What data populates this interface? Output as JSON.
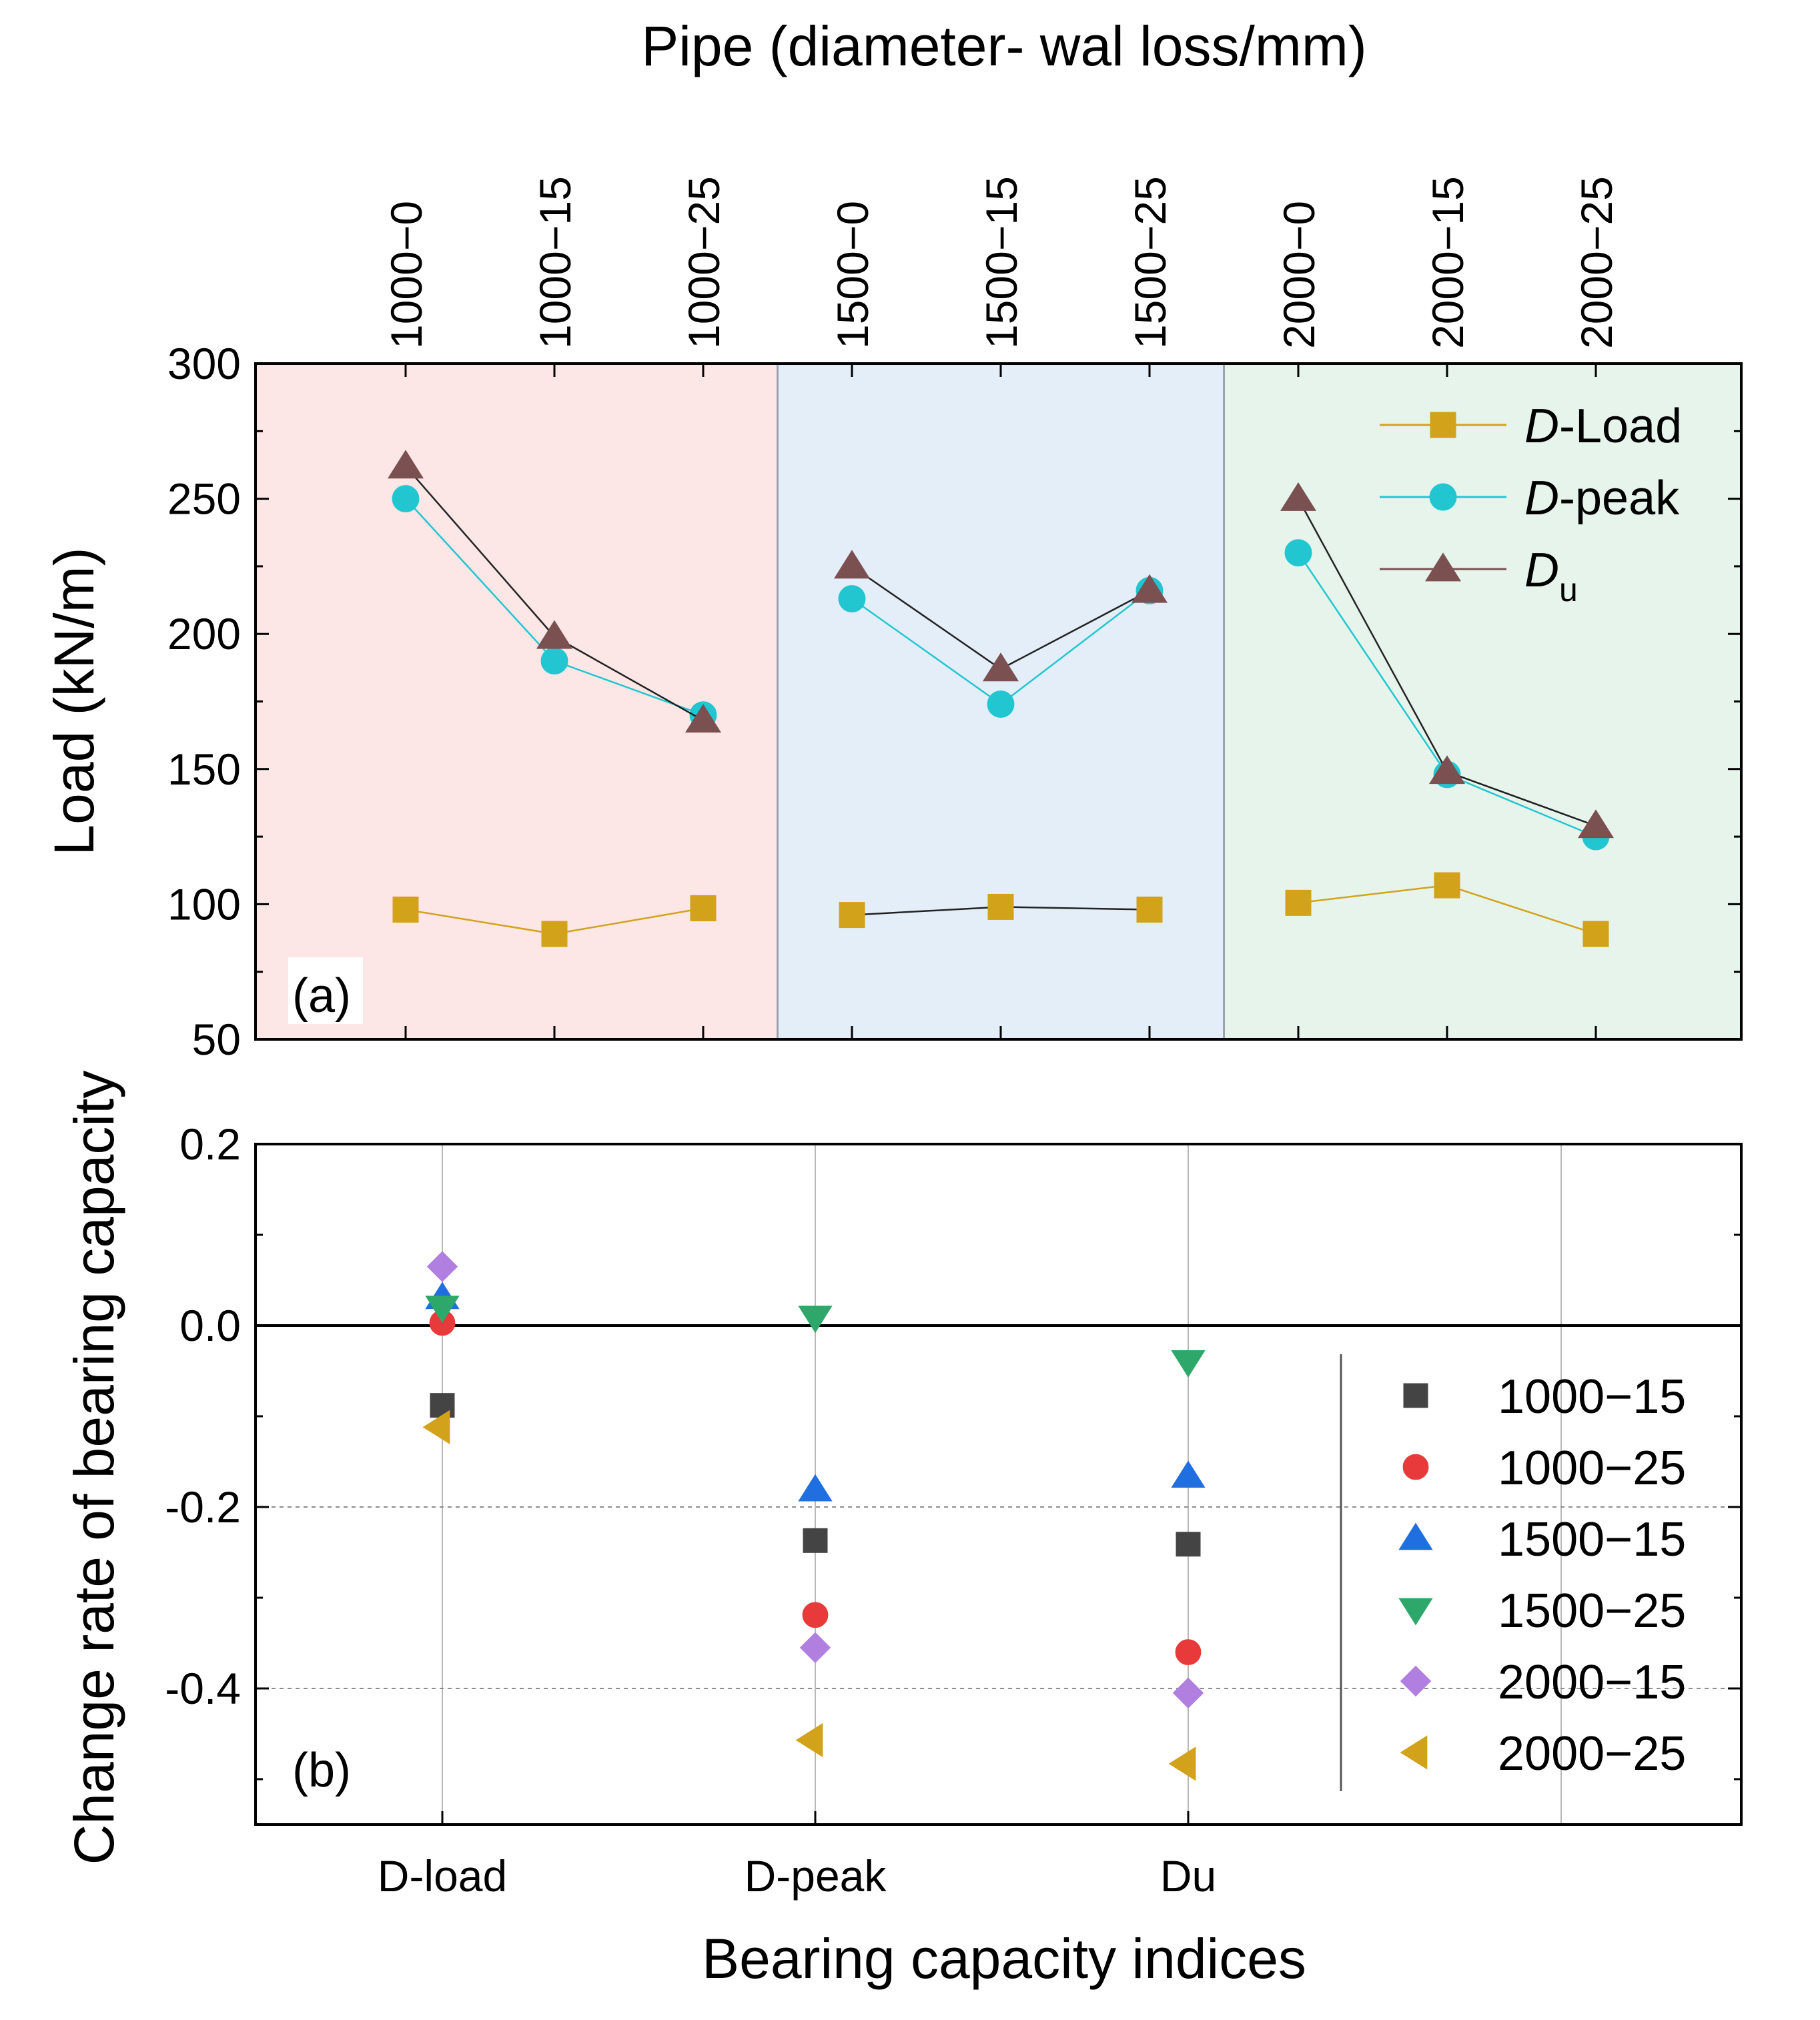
{
  "chart_data": [
    {
      "panel": "a",
      "type": "line",
      "panel_label": "(a)",
      "top_axis_title": "Pipe (diameter- wal loss/mm)",
      "ylabel": "Load (kN/m)",
      "ylim": [
        50,
        300
      ],
      "yticks": [
        "50",
        "100",
        "150",
        "200",
        "250",
        "300"
      ],
      "categories": [
        "1000−0",
        "1000−15",
        "1000−25",
        "1500−0",
        "1500−15",
        "1500−25",
        "2000−0",
        "2000−15",
        "2000−25"
      ],
      "groups": [
        {
          "name": "1000",
          "range": [
            0,
            2
          ],
          "color": "#fce6e6"
        },
        {
          "name": "1500",
          "range": [
            3,
            5
          ],
          "color": "#e3eef9"
        },
        {
          "name": "2000",
          "range": [
            6,
            8
          ],
          "color": "#e6f4ec"
        }
      ],
      "series": [
        {
          "name": "D-Load",
          "italic": "D",
          "rest": "-Load",
          "sub": "",
          "marker": "square",
          "color": "#d2a21b",
          "values": [
            98,
            89,
            98.5,
            96,
            99,
            98,
            100.5,
            107,
            89
          ]
        },
        {
          "name": "D-peak",
          "italic": "D",
          "rest": "-peak",
          "sub": "",
          "marker": "circle",
          "color": "#22c6d0",
          "values": [
            250,
            190,
            170,
            213,
            174,
            216,
            230,
            148,
            125
          ]
        },
        {
          "name": "Du",
          "italic": "D",
          "rest": "",
          "sub": "u",
          "marker": "triangle-up",
          "color": "#7a5050",
          "values": [
            262,
            199,
            168,
            225,
            187,
            216,
            250,
            149,
            129
          ]
        }
      ]
    },
    {
      "panel": "b",
      "type": "scatter",
      "panel_label": "(b)",
      "xlabel": "Bearing capacity indices",
      "ylabel": "Change rate of bearing capacity",
      "ylim": [
        -0.55,
        0.2
      ],
      "yticks": [
        "-0.4",
        "-0.2",
        "0.0",
        "0.2"
      ],
      "categories": [
        "D-load",
        "D-peak",
        "Du"
      ],
      "series": [
        {
          "name": "1000−15",
          "marker": "square",
          "color": "#444444",
          "values": [
            -0.088,
            -0.237,
            -0.241
          ]
        },
        {
          "name": "1000−25",
          "marker": "circle",
          "color": "#e83a3a",
          "values": [
            0.003,
            -0.319,
            -0.36
          ]
        },
        {
          "name": "1500−15",
          "marker": "triangle-up",
          "color": "#1f6fe0",
          "values": [
            0.031,
            -0.181,
            -0.166
          ]
        },
        {
          "name": "1500−25",
          "marker": "triangle-down",
          "color": "#2ea86a",
          "values": [
            0.02,
            0.009,
            -0.04
          ]
        },
        {
          "name": "2000−15",
          "marker": "diamond",
          "color": "#b07fe0",
          "values": [
            0.065,
            -0.355,
            -0.405
          ]
        },
        {
          "name": "2000−25",
          "marker": "triangle-left",
          "color": "#d2a21b",
          "values": [
            -0.112,
            -0.457,
            -0.483
          ]
        }
      ]
    }
  ]
}
